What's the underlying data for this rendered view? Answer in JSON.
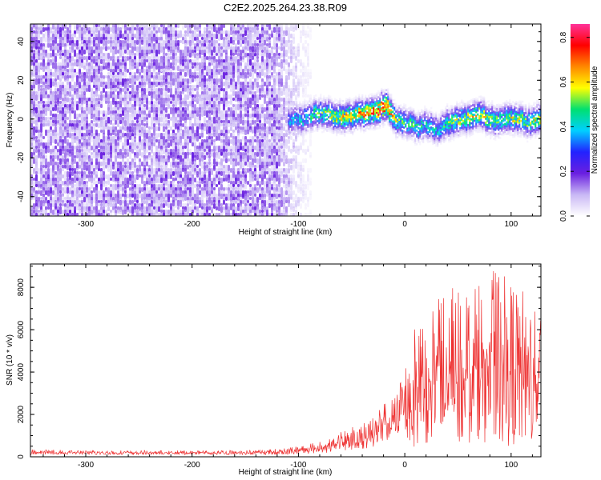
{
  "figure": {
    "title": "C2E2.2025.264.23.38.R09"
  },
  "chart_data": [
    {
      "type": "heatmap",
      "title": "C2E2.2025.264.23.38.R09",
      "xlabel": "Height of straight line (km)",
      "ylabel": "Frequency (Hz)",
      "xlim": [
        -352,
        128
      ],
      "ylim": [
        -50,
        49
      ],
      "xticks": [
        -300,
        -200,
        -100,
        0,
        100
      ],
      "xtick_labels": [
        "-300",
        "-200",
        "-100",
        "0",
        "100"
      ],
      "yticks": [
        -40,
        -20,
        0,
        20,
        40
      ],
      "ytick_labels": [
        "-40",
        "-20",
        "0",
        "20",
        "40"
      ],
      "noise_region_x": [
        -352,
        -88
      ],
      "signal_ridge": {
        "x": [
          -110,
          -100,
          -80,
          -60,
          -40,
          -25,
          -18,
          -10,
          0,
          10,
          20,
          30,
          40,
          55,
          70,
          85,
          100,
          115,
          128
        ],
        "center_hz": [
          0,
          0,
          3,
          1,
          3,
          5,
          7,
          0,
          -2,
          -4,
          -3,
          -6,
          -2,
          0,
          2,
          -1,
          1,
          -2,
          1
        ],
        "peak_amplitude": [
          0.35,
          0.4,
          0.5,
          0.6,
          0.65,
          0.75,
          0.8,
          0.55,
          0.45,
          0.5,
          0.45,
          0.4,
          0.5,
          0.55,
          0.6,
          0.5,
          0.55,
          0.5,
          0.6
        ]
      },
      "colorbar": {
        "label": "Normalized spectral amplitude",
        "range": [
          0,
          0.86
        ],
        "ticks": [
          0.0,
          0.2,
          0.4,
          0.6,
          0.8
        ],
        "tick_labels": [
          "0.0",
          "0.2",
          "0.4",
          "0.6",
          "0.8"
        ],
        "colors": [
          "#ffffff",
          "#c9b8f5",
          "#6a1fe0",
          "#2222ff",
          "#00d0ff",
          "#00e070",
          "#ffff00",
          "#ff8800",
          "#ff0000",
          "#ff3399"
        ]
      }
    },
    {
      "type": "line",
      "xlabel": "Height of straight line (km)",
      "ylabel": "SNR (10 * v/v)",
      "xlim": [
        -352,
        128
      ],
      "ylim": [
        0,
        9100
      ],
      "xticks": [
        -300,
        -200,
        -100,
        0,
        100
      ],
      "xtick_labels": [
        "-300",
        "-200",
        "-100",
        "0",
        "100"
      ],
      "yticks": [
        0,
        2000,
        4000,
        6000,
        8000
      ],
      "ytick_labels": [
        "0",
        "2000",
        "4000",
        "6000",
        "8000"
      ],
      "color": "#ee3333",
      "series": [
        {
          "name": "SNR",
          "envelope_x": [
            -352,
            -300,
            -200,
            -140,
            -110,
            -90,
            -70,
            -55,
            -40,
            -30,
            -20,
            -10,
            -2,
            5,
            15,
            25,
            40,
            55,
            70,
            85,
            100,
            115,
            128
          ],
          "envelope_max": [
            350,
            300,
            300,
            320,
            450,
            600,
            900,
            1300,
            1600,
            2100,
            2500,
            2900,
            4400,
            6300,
            7200,
            7500,
            7900,
            8300,
            8500,
            8900,
            8300,
            7900,
            7500
          ],
          "envelope_min": [
            100,
            100,
            100,
            100,
            100,
            150,
            200,
            250,
            350,
            450,
            600,
            900,
            1200,
            400,
            600,
            600,
            600,
            500,
            700,
            600,
            500,
            700,
            600
          ]
        }
      ]
    }
  ]
}
